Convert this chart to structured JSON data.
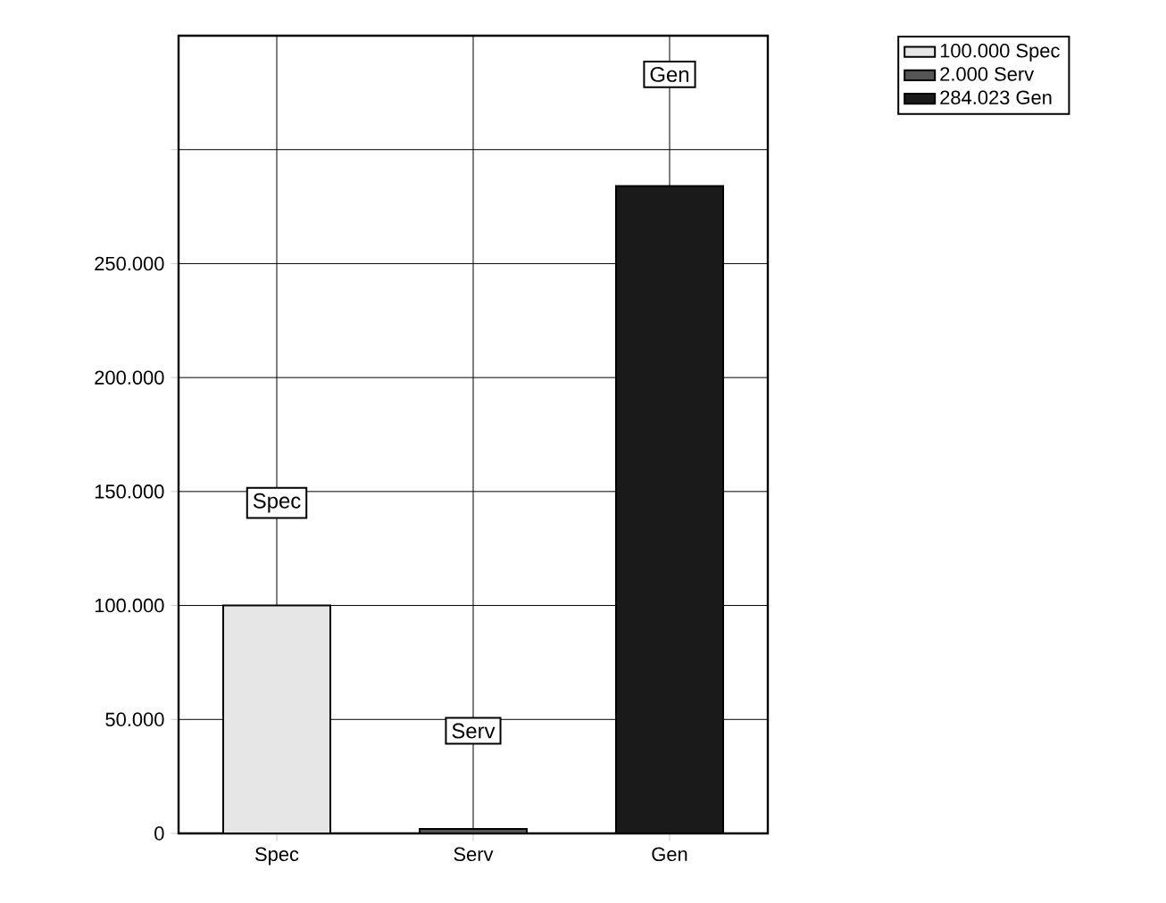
{
  "chart_data": {
    "type": "bar",
    "categories": [
      "Spec",
      "Serv",
      "Gen"
    ],
    "series": [
      {
        "name": "100.000 Spec",
        "color": "#e6e6e6",
        "values": [
          100000,
          null,
          null
        ]
      },
      {
        "name": "2.000 Serv",
        "color": "#555555",
        "values": [
          null,
          2000,
          null
        ]
      },
      {
        "name": "284.023 Gen",
        "color": "#1a1a1a",
        "values": [
          null,
          null,
          284023
        ]
      }
    ],
    "ylim": [
      0,
      350000
    ],
    "yticks": [
      0,
      {
        "value": 50000,
        "label": "50.000"
      },
      {
        "value": 100000,
        "label": "100.000"
      },
      {
        "value": 150000,
        "label": "150.000"
      },
      {
        "value": 200000,
        "label": "200.000"
      },
      {
        "value": 250000,
        "label": "250.000"
      },
      {
        "value": 300000,
        "label": null
      }
    ],
    "annotations": [
      {
        "text": "Spec",
        "x": "Spec",
        "y": 145000
      },
      {
        "text": "Serv",
        "x": "Serv",
        "y": 45000
      },
      {
        "text": "Gen",
        "x": "Gen",
        "y": 333000
      }
    ],
    "grid": true,
    "legend": "top right"
  }
}
